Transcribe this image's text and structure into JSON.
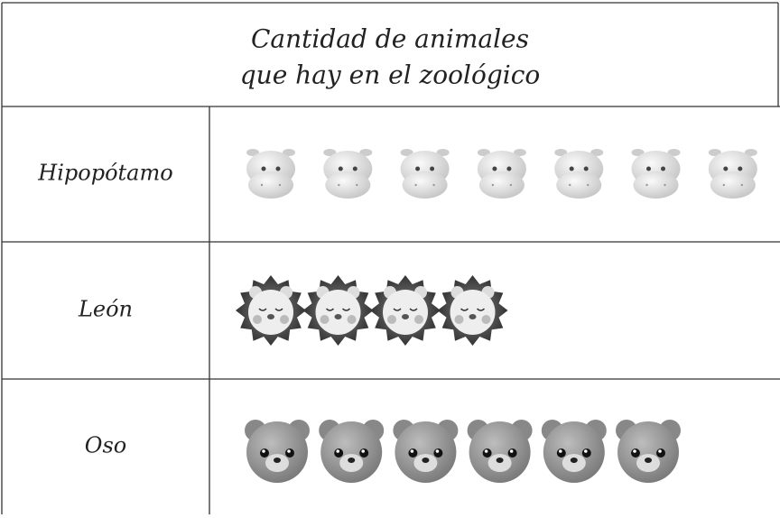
{
  "chart_data": {
    "type": "pictograph",
    "title": [
      "Cantidad de animales",
      "que hay en el zoológico"
    ],
    "categories": [
      "Hipopótamo",
      "León",
      "Oso"
    ],
    "values": [
      7,
      4,
      6
    ]
  }
}
